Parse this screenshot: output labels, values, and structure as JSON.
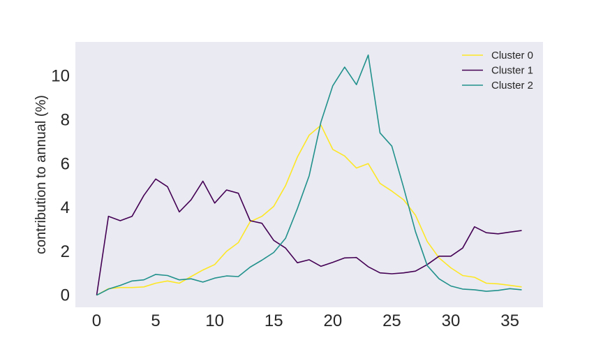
{
  "chart_data": {
    "type": "line",
    "title": "",
    "xlabel": "",
    "ylabel": "contribution to annual (%)",
    "xlim": [
      -1.8,
      37.8
    ],
    "ylim": [
      -0.55,
      11.55
    ],
    "xticks": [
      0,
      5,
      10,
      15,
      20,
      25,
      30,
      35
    ],
    "yticks": [
      0,
      2,
      4,
      6,
      8,
      10
    ],
    "grid": false,
    "background": "#eaeaf2",
    "legend": {
      "position": "top-right"
    },
    "x": [
      0,
      1,
      2,
      3,
      4,
      5,
      6,
      7,
      8,
      9,
      10,
      11,
      12,
      13,
      14,
      15,
      16,
      17,
      18,
      19,
      20,
      21,
      22,
      23,
      24,
      25,
      26,
      27,
      28,
      29,
      30,
      31,
      32,
      33,
      34,
      35,
      36
    ],
    "series": [
      {
        "name": "Cluster 0",
        "color": "#fde725",
        "values": [
          0.0,
          0.3,
          0.35,
          0.35,
          0.38,
          0.55,
          0.65,
          0.55,
          0.85,
          1.15,
          1.4,
          2.0,
          2.4,
          3.35,
          3.6,
          4.05,
          5.0,
          6.3,
          7.3,
          7.75,
          6.65,
          6.35,
          5.8,
          6.0,
          5.1,
          4.75,
          4.35,
          3.65,
          2.45,
          1.7,
          1.25,
          0.9,
          0.82,
          0.55,
          0.52,
          0.45,
          0.38
        ]
      },
      {
        "name": "Cluster 1",
        "color": "#440154",
        "values": [
          0.0,
          3.6,
          3.4,
          3.6,
          4.55,
          5.3,
          4.95,
          3.8,
          4.35,
          5.2,
          4.2,
          4.8,
          4.65,
          3.4,
          3.28,
          2.5,
          2.15,
          1.48,
          1.62,
          1.32,
          1.5,
          1.7,
          1.72,
          1.3,
          1.02,
          0.98,
          1.02,
          1.1,
          1.4,
          1.78,
          1.78,
          2.15,
          3.12,
          2.85,
          2.8,
          2.88,
          2.95
        ]
      },
      {
        "name": "Cluster 2",
        "color": "#21918c",
        "values": [
          0.0,
          0.28,
          0.45,
          0.65,
          0.7,
          0.95,
          0.9,
          0.7,
          0.75,
          0.6,
          0.78,
          0.88,
          0.85,
          1.28,
          1.6,
          1.95,
          2.6,
          3.95,
          5.45,
          7.9,
          9.55,
          10.4,
          9.6,
          10.95,
          7.4,
          6.8,
          4.9,
          2.9,
          1.35,
          0.75,
          0.42,
          0.28,
          0.25,
          0.18,
          0.22,
          0.3,
          0.25
        ]
      }
    ]
  }
}
